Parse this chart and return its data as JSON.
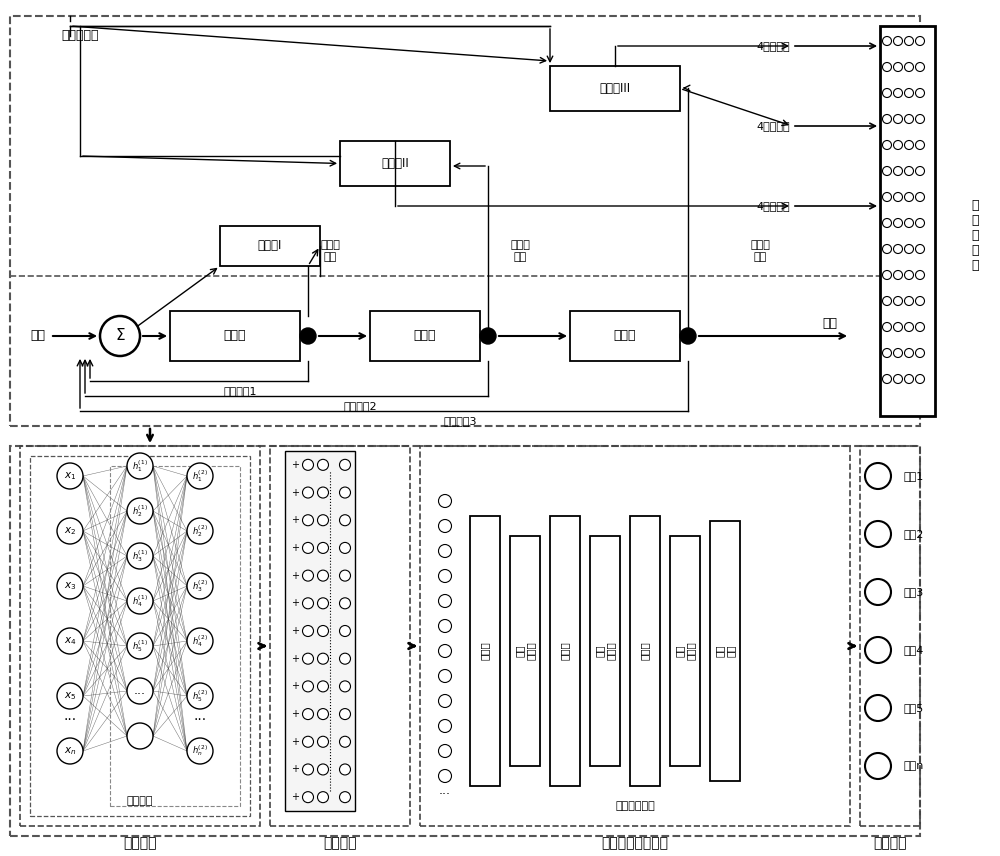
{
  "bg_color": "#ffffff",
  "top": {
    "actuator_system": "作动器系统",
    "input": "输入",
    "output": "输出",
    "multi_residual": "多\n通\n道\n残\n差",
    "fb1": "反馈信号1",
    "fb2": "反馈信号2",
    "fb3": "反馈信号3",
    "lmd": "力马达",
    "valve": "直驱阀",
    "actuator": "作动筒",
    "obs1": "观测器I",
    "obs2": "观测器II",
    "obs3": "观测器III",
    "sensor1": "电流传\n感器",
    "sensor2": "位移传\n感器",
    "sensor3": "位移传\n感器",
    "res1": "4通道残差",
    "res2": "4通道残差",
    "res3": "4通道残差"
  },
  "bottom": {
    "feat_extract": "特征提取",
    "feat_fuse": "特征融合",
    "deep_model": "深度学习诊断模型",
    "fault_diag": "故障诊断",
    "autoencoder": "自编码器",
    "cnn": "卷积神经网络",
    "faults": [
      "故障1",
      "故障2",
      "故障3",
      "故障4",
      "故障5",
      "故障n"
    ],
    "layers": [
      "卷积层",
      "最大池化层",
      "卷积层",
      "最大池化层",
      "卷积层",
      "最大池化层",
      "全连接层"
    ]
  }
}
